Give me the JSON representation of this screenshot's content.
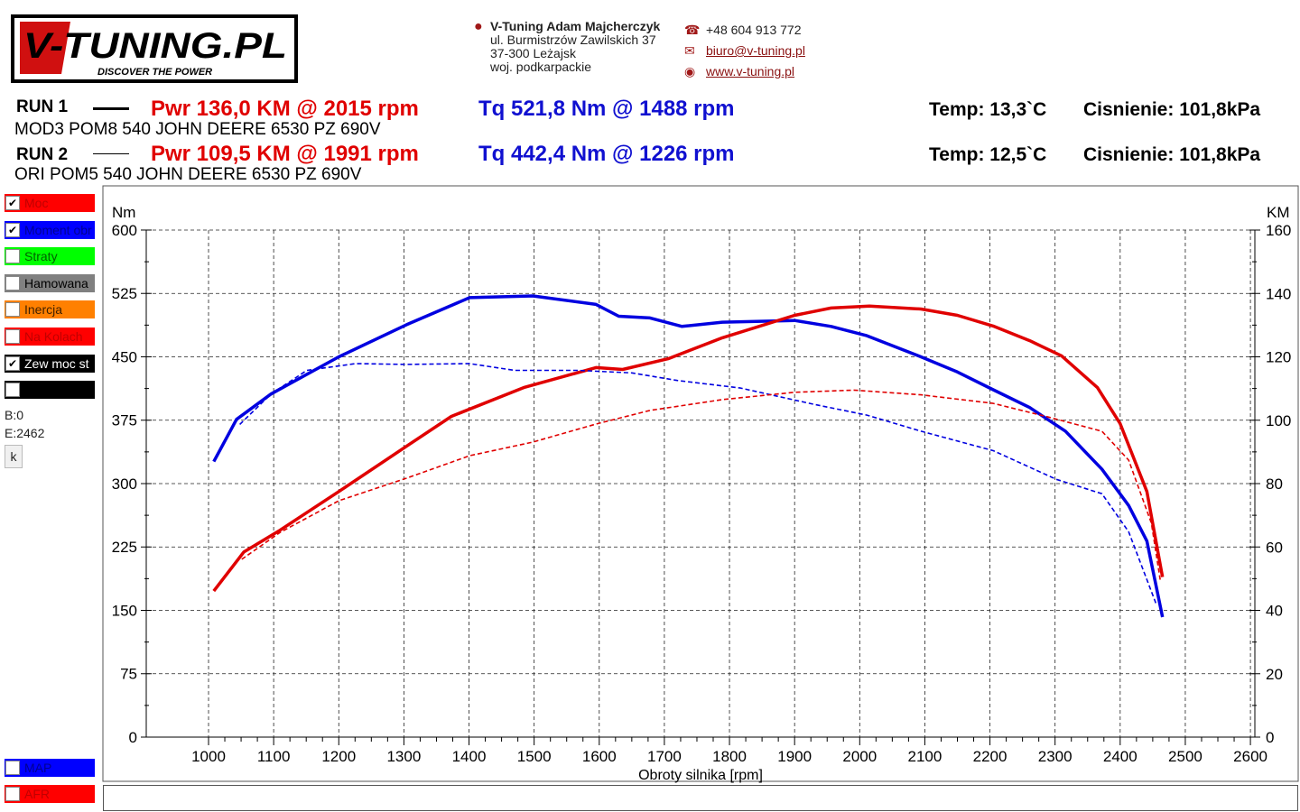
{
  "logo": {
    "text": "V-TUNING.PL",
    "tagline": "DISCOVER THE POWER"
  },
  "contact": {
    "company": "V-Tuning Adam Majcherczyk",
    "street": "ul. Burmistrzów Zawilskich 37",
    "city": "37-300 Leżajsk",
    "region": "woj. podkarpackie",
    "phone": "+48 604 913 772",
    "email": "biuro@v-tuning.pl",
    "web": "www.v-tuning.pl"
  },
  "runs": [
    {
      "label": "RUN 1",
      "desc": "MOD3 POM8 540 JOHN DEERE 6530  PZ 690V",
      "pwr": "Pwr  136,0 KM @ 2015 rpm",
      "tq": "Tq 521,8 Nm @ 1488 rpm",
      "temp": "Temp: 13,3`C",
      "press": "Cisnienie: 101,8kPa"
    },
    {
      "label": "RUN 2",
      "desc": "ORI POM5 540 JOHN DEERE 6530 PZ 690V",
      "pwr": "Pwr  109,5 KM @ 1991 rpm",
      "tq": "Tq 442,4 Nm @ 1226 rpm",
      "temp": "Temp: 12,5`C",
      "press": "Cisnienie: 101,8kPa"
    }
  ],
  "panel": {
    "checks": [
      {
        "label": "Moc",
        "color": "#ff0000",
        "text": "#c00000",
        "checked": true
      },
      {
        "label": "Moment obr",
        "color": "#0000ff",
        "text": "#000090",
        "checked": true
      },
      {
        "label": "Straty",
        "color": "#00ff00",
        "text": "#006000",
        "checked": false
      },
      {
        "label": "Hamowana",
        "color": "#808080",
        "text": "#000000",
        "checked": false
      },
      {
        "label": "Inercja",
        "color": "#ff8000",
        "text": "#402000",
        "checked": false
      },
      {
        "label": "Na Kolach",
        "color": "#ff0000",
        "text": "#c00000",
        "checked": false
      },
      {
        "label": "Zew moc st",
        "color": "#000000",
        "text": "#ffffff",
        "checked": true
      },
      {
        "label": "",
        "color": "#000000",
        "text": "#ffffff",
        "checked": false
      }
    ],
    "b": "B:0",
    "e": "E:2462",
    "k_button": "k",
    "bottom_checks": [
      {
        "label": "MAP",
        "color": "#0000ff",
        "text": "#000090",
        "checked": false
      },
      {
        "label": "AFR",
        "color": "#ff0000",
        "text": "#c00000",
        "checked": false
      }
    ]
  },
  "chart_data": {
    "type": "line",
    "xlabel": "Obroty silnika [rpm]",
    "ylabel_left": "Nm",
    "ylabel_right": "KM",
    "xlim": [
      920,
      2640
    ],
    "xticks": [
      1000,
      1100,
      1200,
      1300,
      1400,
      1500,
      1600,
      1700,
      1800,
      1900,
      2000,
      2100,
      2200,
      2300,
      2400,
      2500,
      2600
    ],
    "ylim_left": [
      0,
      600
    ],
    "yticks_left": [
      0,
      75,
      150,
      225,
      300,
      375,
      450,
      525,
      600
    ],
    "ylim_right": [
      0,
      160
    ],
    "yticks_right": [
      0,
      20,
      40,
      60,
      80,
      100,
      120,
      140,
      160
    ],
    "grid": true,
    "series": [
      {
        "run": "RUN 1",
        "quantity": "torque",
        "axis": "left",
        "color": "#0000e0",
        "style": "solid",
        "x": [
          1008,
          1043,
          1096,
          1200,
          1304,
          1401,
          1498,
          1595,
          1630,
          1678,
          1727,
          1789,
          1900,
          1956,
          2011,
          2094,
          2150,
          2205,
          2261,
          2316,
          2372,
          2413,
          2441,
          2465
        ],
        "y": [
          326,
          376,
          406,
          450,
          488,
          520,
          522,
          512,
          498,
          496,
          486,
          491,
          493,
          486,
          475,
          450,
          432,
          411,
          390,
          362,
          317,
          274,
          232,
          142
        ]
      },
      {
        "run": "RUN 1",
        "quantity": "power",
        "axis": "right",
        "color": "#e00000",
        "style": "solid",
        "x": [
          1008,
          1054,
          1110,
          1200,
          1304,
          1373,
          1484,
          1595,
          1636,
          1706,
          1789,
          1900,
          1956,
          2015,
          2094,
          2150,
          2205,
          2261,
          2310,
          2365,
          2400,
          2441,
          2465
        ],
        "y": [
          46.1,
          58.4,
          65.3,
          77.5,
          91.8,
          101.2,
          110.3,
          116.6,
          116.0,
          119.4,
          126.0,
          133.1,
          135.4,
          136.0,
          135.1,
          133.1,
          129.7,
          125.1,
          120.3,
          110.3,
          98.9,
          77.5,
          50.5
        ]
      },
      {
        "run": "RUN 2",
        "quantity": "torque",
        "axis": "left",
        "color": "#0000e0",
        "style": "dashed",
        "x": [
          1048,
          1096,
          1151,
          1226,
          1304,
          1401,
          1470,
          1567,
          1650,
          1720,
          1817,
          1928,
          2011,
          2094,
          2205,
          2302,
          2372,
          2413,
          2455
        ],
        "y": [
          370,
          406,
          434,
          442,
          441,
          442,
          434,
          434,
          431,
          422,
          413,
          394,
          381,
          362,
          339,
          305,
          288,
          243,
          158
        ]
      },
      {
        "run": "RUN 2",
        "quantity": "power",
        "axis": "right",
        "color": "#e00000",
        "style": "dashed",
        "x": [
          1051,
          1110,
          1200,
          1304,
          1401,
          1498,
          1595,
          1678,
          1789,
          1900,
          1991,
          2094,
          2205,
          2288,
          2372,
          2413,
          2448,
          2462
        ],
        "y": [
          56.1,
          64.6,
          74.6,
          81.7,
          88.8,
          93.1,
          98.8,
          103.1,
          106.5,
          108.8,
          109.5,
          108.0,
          105.3,
          101.1,
          96.5,
          87.4,
          67.5,
          49
        ]
      }
    ]
  }
}
